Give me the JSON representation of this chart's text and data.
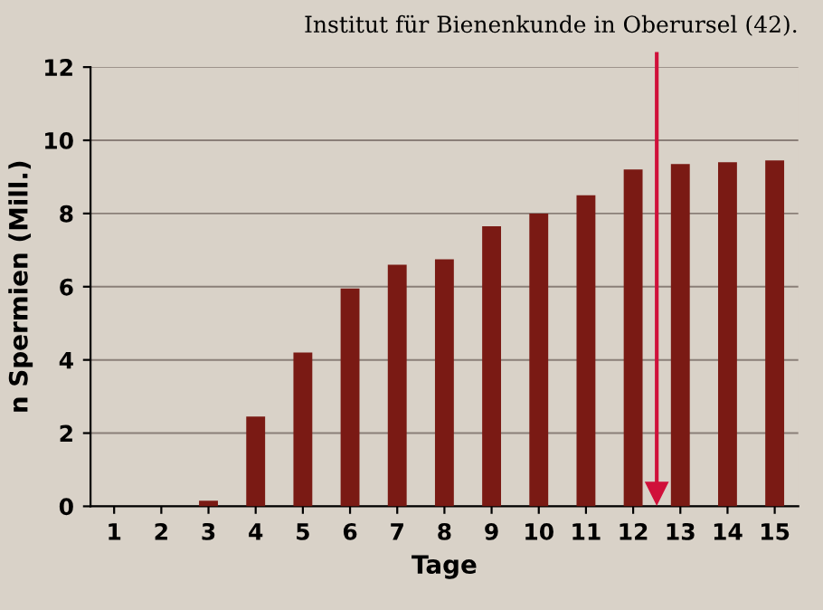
{
  "chart_data": {
    "type": "bar",
    "ylabel": "n Spermien (Mill.)",
    "xlabel": "Tage",
    "x": [
      1,
      2,
      3,
      4,
      5,
      6,
      7,
      8,
      9,
      10,
      11,
      12,
      13,
      14,
      15
    ],
    "values": [
      0,
      0,
      0.15,
      2.45,
      4.2,
      5.95,
      6.6,
      6.75,
      7.65,
      8.0,
      8.5,
      9.2,
      9.35,
      9.4,
      9.45
    ],
    "color": "#7a1a14",
    "xlim": [
      0.5,
      15.5
    ],
    "xticks": [
      1,
      2,
      3,
      4,
      5,
      6,
      7,
      8,
      9,
      10,
      11,
      12,
      13,
      14,
      15
    ],
    "ylim": [
      0,
      12
    ],
    "yticks": [
      0,
      2,
      4,
      6,
      8,
      10,
      12
    ],
    "grid": "y",
    "ref_lines": [
      {
        "axis": "x",
        "value": 12.5,
        "color": "#d0103a"
      }
    ],
    "annotations": [
      "Institut für Bienenkunde in Oberursel (42)."
    ]
  }
}
